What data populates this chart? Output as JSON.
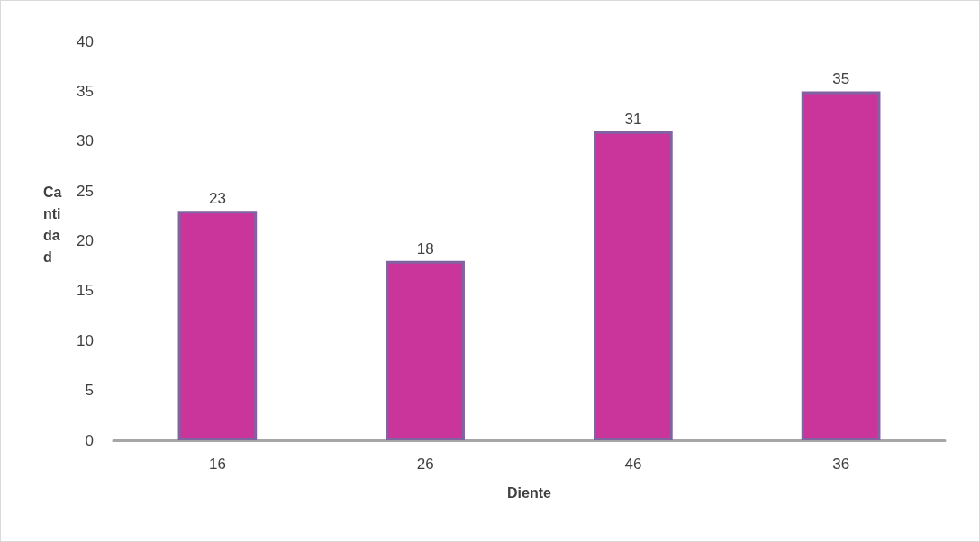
{
  "chart_data": {
    "type": "bar",
    "xlabel": "Diente",
    "ylabel": "Cantidad",
    "categories": [
      "16",
      "26",
      "46",
      "36"
    ],
    "values": [
      23,
      18,
      31,
      35
    ],
    "color": "#c9359a",
    "ylim": [
      0,
      40
    ],
    "yticks": [
      0,
      5,
      10,
      15,
      20,
      25,
      30,
      35,
      40
    ],
    "data_labels": true,
    "grid": false
  }
}
